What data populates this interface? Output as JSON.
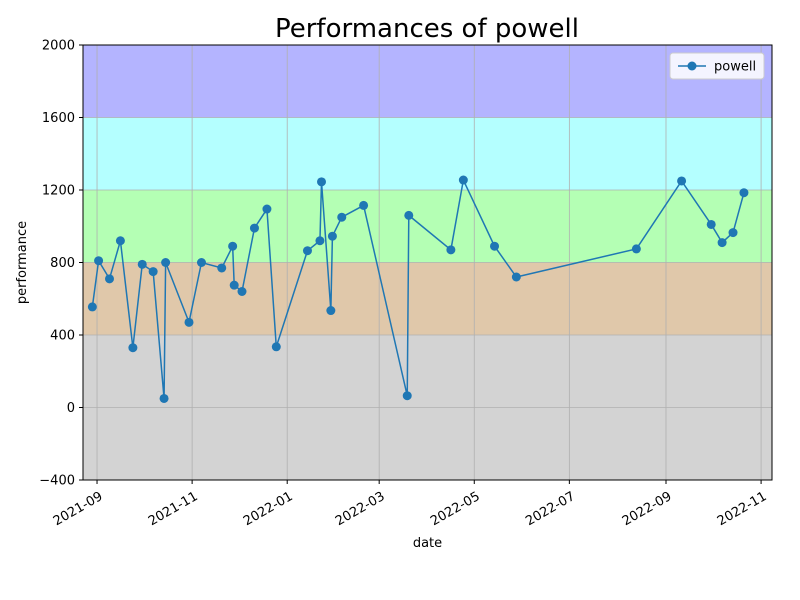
{
  "chart_data": {
    "type": "line",
    "title": "Performances of powell",
    "xlabel": "date",
    "ylabel": "performance",
    "ylim": [
      -400,
      2000
    ],
    "xlim": [
      "2021-08-23",
      "2022-11-08"
    ],
    "yticks": [
      -400,
      0,
      400,
      800,
      1200,
      1600,
      2000
    ],
    "xticks": [
      "2021-09",
      "2021-11",
      "2022-01",
      "2022-03",
      "2022-05",
      "2022-07",
      "2022-09",
      "2022-11"
    ],
    "grid": true,
    "legend_position": "top-right",
    "bands": [
      {
        "from": -400,
        "to": 400,
        "color": "#d3d3d3"
      },
      {
        "from": 400,
        "to": 800,
        "color": "#e0c8aa"
      },
      {
        "from": 800,
        "to": 1200,
        "color": "#b4ffb4"
      },
      {
        "from": 1200,
        "to": 1600,
        "color": "#b4ffff"
      },
      {
        "from": 1600,
        "to": 2000,
        "color": "#b4b4ff"
      }
    ],
    "series": [
      {
        "name": "powell",
        "color": "#1f77b4",
        "points": [
          {
            "x": "2021-08-29",
            "y": 555
          },
          {
            "x": "2021-09-02",
            "y": 810
          },
          {
            "x": "2021-09-09",
            "y": 710
          },
          {
            "x": "2021-09-16",
            "y": 920
          },
          {
            "x": "2021-09-24",
            "y": 330
          },
          {
            "x": "2021-09-30",
            "y": 790
          },
          {
            "x": "2021-10-07",
            "y": 750
          },
          {
            "x": "2021-10-14",
            "y": 50
          },
          {
            "x": "2021-10-15",
            "y": 800
          },
          {
            "x": "2021-10-30",
            "y": 470
          },
          {
            "x": "2021-11-07",
            "y": 800
          },
          {
            "x": "2021-11-20",
            "y": 770
          },
          {
            "x": "2021-11-27",
            "y": 890
          },
          {
            "x": "2021-11-28",
            "y": 675
          },
          {
            "x": "2021-12-03",
            "y": 640
          },
          {
            "x": "2021-12-11",
            "y": 990
          },
          {
            "x": "2021-12-19",
            "y": 1095
          },
          {
            "x": "2021-12-25",
            "y": 335
          },
          {
            "x": "2022-01-14",
            "y": 865
          },
          {
            "x": "2022-01-22",
            "y": 920
          },
          {
            "x": "2022-01-23",
            "y": 1245
          },
          {
            "x": "2022-01-29",
            "y": 535
          },
          {
            "x": "2022-01-30",
            "y": 945
          },
          {
            "x": "2022-02-05",
            "y": 1050
          },
          {
            "x": "2022-02-19",
            "y": 1115
          },
          {
            "x": "2022-03-19",
            "y": 65
          },
          {
            "x": "2022-03-20",
            "y": 1060
          },
          {
            "x": "2022-04-16",
            "y": 870
          },
          {
            "x": "2022-04-24",
            "y": 1255
          },
          {
            "x": "2022-05-14",
            "y": 890
          },
          {
            "x": "2022-05-28",
            "y": 720
          },
          {
            "x": "2022-08-13",
            "y": 875
          },
          {
            "x": "2022-09-11",
            "y": 1250
          },
          {
            "x": "2022-09-30",
            "y": 1010
          },
          {
            "x": "2022-10-07",
            "y": 910
          },
          {
            "x": "2022-10-14",
            "y": 965
          },
          {
            "x": "2022-10-21",
            "y": 1185
          }
        ]
      }
    ]
  }
}
